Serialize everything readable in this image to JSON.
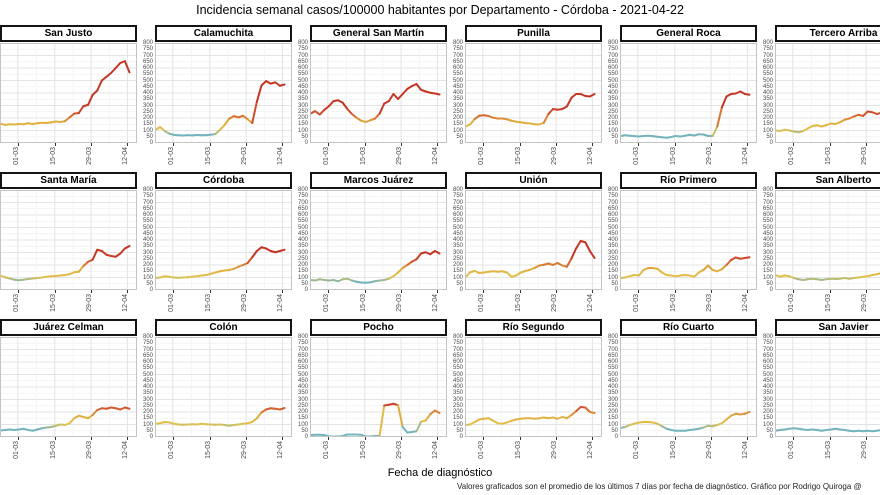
{
  "title": "Incidencia semanal casos/100000 habitantes por Departamento - Córdoba - 2021-04-22",
  "xlabel": "Fecha de diagnóstico",
  "footer": "Valores graficados son el promedio de los últimos 7 días por fecha de diagnóstico. Gráfico por Rodrigo Quiroga @",
  "chart_data": {
    "type": "line",
    "layout": "facet-grid 3 rows x 6 cols, free cropped edges",
    "ylim": [
      0,
      800
    ],
    "y_tick_step": 50,
    "y_tick_labels": [
      "800",
      "750",
      "700",
      "650",
      "600",
      "550",
      "500",
      "450",
      "400",
      "350",
      "300",
      "250",
      "200",
      "150",
      "100",
      "50",
      "0"
    ],
    "x_ticks": [
      {
        "label": "01-03",
        "f": 0.13
      },
      {
        "label": "15-03",
        "f": 0.4
      },
      {
        "label": "29-03",
        "f": 0.665
      },
      {
        "label": "12-04",
        "f": 0.93
      }
    ],
    "grid": "major+minor, light gray on white",
    "line_width": 2,
    "color_scale": {
      "meaning": "line colored by incidence value (low teal, mid yellow, high red)",
      "stops": [
        [
          0,
          "#74B4BC"
        ],
        [
          65,
          "#74B4BC"
        ],
        [
          105,
          "#E2C14B"
        ],
        [
          170,
          "#DFAE3D"
        ],
        [
          230,
          "#D2572E"
        ],
        [
          285,
          "#C43524"
        ],
        [
          800,
          "#C43524"
        ]
      ]
    },
    "panels": [
      {
        "name": "San Justo",
        "values": [
          155,
          145,
          150,
          148,
          152,
          150,
          158,
          152,
          158,
          162,
          160,
          165,
          172,
          168,
          175,
          205,
          235,
          240,
          295,
          305,
          385,
          420,
          500,
          530,
          560,
          600,
          640,
          655,
          565
        ]
      },
      {
        "name": "Calamuchita",
        "values": [
          105,
          128,
          95,
          75,
          65,
          62,
          60,
          63,
          61,
          64,
          62,
          63,
          66,
          72,
          105,
          145,
          195,
          215,
          205,
          218,
          190,
          160,
          330,
          460,
          495,
          475,
          485,
          458,
          468
        ]
      },
      {
        "name": "General San Martín",
        "values": [
          235,
          255,
          228,
          265,
          295,
          335,
          342,
          322,
          272,
          232,
          202,
          178,
          168,
          182,
          195,
          235,
          315,
          335,
          392,
          352,
          392,
          432,
          455,
          472,
          425,
          412,
          402,
          396,
          388
        ]
      },
      {
        "name": "Punilla",
        "values": [
          132,
          148,
          192,
          218,
          222,
          216,
          202,
          196,
          196,
          190,
          178,
          170,
          166,
          160,
          156,
          150,
          148,
          162,
          232,
          272,
          266,
          272,
          292,
          362,
          392,
          392,
          376,
          372,
          392
        ]
      },
      {
        "name": "General Roca",
        "values": [
          55,
          62,
          58,
          55,
          52,
          56,
          58,
          55,
          50,
          46,
          42,
          48,
          56,
          52,
          58,
          66,
          60,
          70,
          68,
          56,
          56,
          132,
          285,
          372,
          392,
          396,
          412,
          392,
          386
        ]
      },
      {
        "name": "Tercero Arriba",
        "values": [
          100,
          96,
          106,
          100,
          92,
          86,
          96,
          116,
          136,
          142,
          132,
          142,
          156,
          152,
          166,
          186,
          196,
          212,
          226,
          216,
          252,
          246,
          232,
          242,
          236,
          262,
          292,
          312,
          302
        ]
      },
      {
        "name": "Santa María",
        "values": [
          116,
          102,
          92,
          82,
          78,
          82,
          88,
          92,
          96,
          100,
          106,
          110,
          112,
          116,
          120,
          126,
          142,
          146,
          192,
          226,
          242,
          322,
          312,
          282,
          272,
          266,
          292,
          332,
          352
        ]
      },
      {
        "name": "Córdoba",
        "values": [
          96,
          100,
          110,
          106,
          100,
          98,
          100,
          102,
          106,
          110,
          116,
          120,
          130,
          140,
          150,
          156,
          160,
          170,
          186,
          200,
          216,
          262,
          312,
          342,
          332,
          312,
          302,
          312,
          322
        ]
      },
      {
        "name": "Marcos Juárez",
        "values": [
          80,
          76,
          86,
          80,
          76,
          80,
          70,
          86,
          90,
          76,
          66,
          60,
          58,
          62,
          70,
          76,
          80,
          90,
          110,
          140,
          176,
          200,
          226,
          246,
          292,
          302,
          286,
          312,
          292
        ]
      },
      {
        "name": "Unión",
        "values": [
          102,
          142,
          152,
          136,
          140,
          146,
          150,
          146,
          150,
          140,
          106,
          116,
          140,
          152,
          162,
          176,
          196,
          202,
          212,
          200,
          216,
          196,
          186,
          252,
          332,
          392,
          382,
          312,
          256
        ]
      },
      {
        "name": "Río Primero",
        "values": [
          96,
          100,
          110,
          120,
          116,
          160,
          176,
          176,
          170,
          140,
          120,
          116,
          110,
          116,
          120,
          116,
          106,
          140,
          160,
          196,
          160,
          150,
          166,
          200,
          240,
          260,
          250,
          256,
          262
        ]
      },
      {
        "name": "San Alberto",
        "values": [
          120,
          106,
          116,
          110,
          96,
          86,
          80,
          86,
          90,
          86,
          80,
          86,
          90,
          88,
          90,
          96,
          90,
          96,
          100,
          106,
          110,
          120,
          126,
          136,
          156,
          176,
          170,
          176,
          182
        ]
      },
      {
        "name": "Juárez Celman",
        "values": [
          52,
          56,
          60,
          56,
          60,
          66,
          56,
          50,
          60,
          70,
          76,
          80,
          90,
          100,
          96,
          110,
          150,
          170,
          160,
          150,
          176,
          216,
          230,
          226,
          236,
          230,
          220,
          236,
          226
        ]
      },
      {
        "name": "Colón",
        "values": [
          106,
          110,
          120,
          116,
          106,
          100,
          98,
          100,
          102,
          100,
          106,
          102,
          100,
          98,
          100,
          96,
          90,
          96,
          100,
          106,
          110,
          120,
          150,
          196,
          220,
          230,
          226,
          220,
          232
        ]
      },
      {
        "name": "Pocho",
        "values": [
          16,
          18,
          18,
          16,
          4,
          4,
          4,
          8,
          20,
          20,
          20,
          18,
          4,
          4,
          8,
          10,
          252,
          258,
          266,
          255,
          80,
          36,
          40,
          46,
          122,
          132,
          182,
          212,
          192
        ]
      },
      {
        "name": "Río Segundo",
        "values": [
          96,
          100,
          120,
          140,
          146,
          150,
          130,
          110,
          106,
          116,
          130,
          140,
          146,
          150,
          150,
          146,
          150,
          156,
          150,
          156,
          146,
          160,
          150,
          176,
          206,
          240,
          236,
          200,
          192
        ]
      },
      {
        "name": "Río Cuarto",
        "values": [
          72,
          80,
          96,
          106,
          116,
          120,
          120,
          116,
          106,
          86,
          66,
          56,
          50,
          50,
          50,
          56,
          60,
          66,
          76,
          90,
          86,
          96,
          110,
          140,
          170,
          186,
          180,
          186,
          200
        ]
      },
      {
        "name": "San Javier",
        "values": [
          50,
          56,
          60,
          66,
          70,
          66,
          60,
          56,
          60,
          56,
          50,
          56,
          60,
          66,
          60,
          56,
          50,
          46,
          50,
          46,
          50,
          46,
          50,
          56,
          50,
          56,
          60,
          56,
          60
        ]
      }
    ]
  }
}
